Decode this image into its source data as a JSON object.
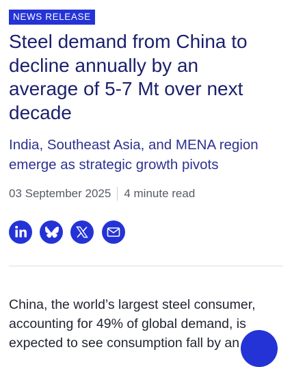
{
  "header": {
    "badge": "NEWS RELEASE",
    "title_lines": [
      "Steel demand from China to",
      "decline annually by an",
      "average of 5-7 Mt over next",
      "decade"
    ],
    "subtitle_lines": [
      "India, Southeast Asia, and MENA region",
      "emerge as strategic growth pivots"
    ],
    "date": "03 September 2025",
    "read_time": "4 minute read"
  },
  "body": {
    "lines": [
      "China, the world’s largest steel consumer,",
      "accounting for 49% of global demand, is",
      "expected to see consumption fall by an"
    ]
  }
}
